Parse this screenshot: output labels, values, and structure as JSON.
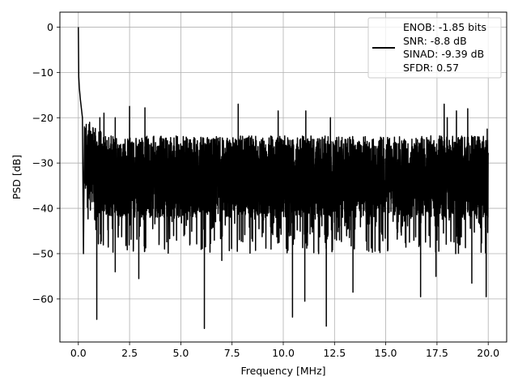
{
  "chart_data": {
    "type": "line",
    "title": "",
    "xlabel": "Frequency [MHz]",
    "ylabel": "PSD [dB]",
    "xlim": [
      -0.9,
      20.9
    ],
    "ylim": [
      -69.5,
      3.3
    ],
    "xticks": [
      0.0,
      2.5,
      5.0,
      7.5,
      10.0,
      12.5,
      15.0,
      17.5,
      20.0
    ],
    "xtick_labels": [
      "0.0",
      "2.5",
      "5.0",
      "7.5",
      "10.0",
      "12.5",
      "15.0",
      "17.5",
      "20.0"
    ],
    "yticks": [
      0,
      -10,
      -20,
      -30,
      -40,
      -50,
      -60
    ],
    "ytick_labels": [
      "0",
      "−10",
      "−20",
      "−30",
      "−40",
      "−50",
      "−60"
    ],
    "grid": true,
    "legend_position": "top-right",
    "legend_entries": [
      "ENOB: -1.85 bits",
      "SNR: -8.8 dB",
      "SINAD: -9.39 dB",
      "SFDR: 0.57"
    ],
    "series": [
      {
        "color": "#000000",
        "x_range": [
          0,
          20
        ],
        "n_points": 4096,
        "noise_floor_db": -32,
        "noise_upper_envelope_db": -24,
        "noise_lower_envelope_db": -42,
        "peak_points": [
          [
            0.0,
            0.0
          ],
          [
            0.02,
            -11.0
          ],
          [
            0.05,
            -13.5
          ],
          [
            0.1,
            -16.0
          ],
          [
            0.15,
            -18.0
          ],
          [
            0.2,
            -20.0
          ],
          [
            0.3,
            -22.0
          ]
        ],
        "notable_peaks_x": [
          0.55,
          1.05,
          1.25,
          1.8,
          2.5,
          3.25,
          7.8,
          9.75,
          11.1,
          12.3,
          17.85,
          18.0,
          18.45,
          19.0,
          19.95
        ],
        "notable_peaks_y": [
          -21.0,
          -20.0,
          -19.0,
          -20.0,
          -17.5,
          -17.8,
          -17.0,
          -18.5,
          -18.5,
          -20.0,
          -17.0,
          -20.0,
          -18.5,
          -18.0,
          -22.5
        ],
        "notable_dips_x": [
          0.25,
          0.9,
          1.8,
          2.95,
          6.15,
          7.0,
          10.45,
          11.05,
          12.1,
          13.4,
          16.7,
          17.45,
          19.2,
          19.9
        ],
        "notable_dips_y": [
          -50.0,
          -64.5,
          -54.0,
          -55.5,
          -66.5,
          -51.5,
          -64.0,
          -60.5,
          -66.0,
          -58.5,
          -59.5,
          -55.0,
          -56.5,
          -59.5
        ]
      }
    ]
  }
}
